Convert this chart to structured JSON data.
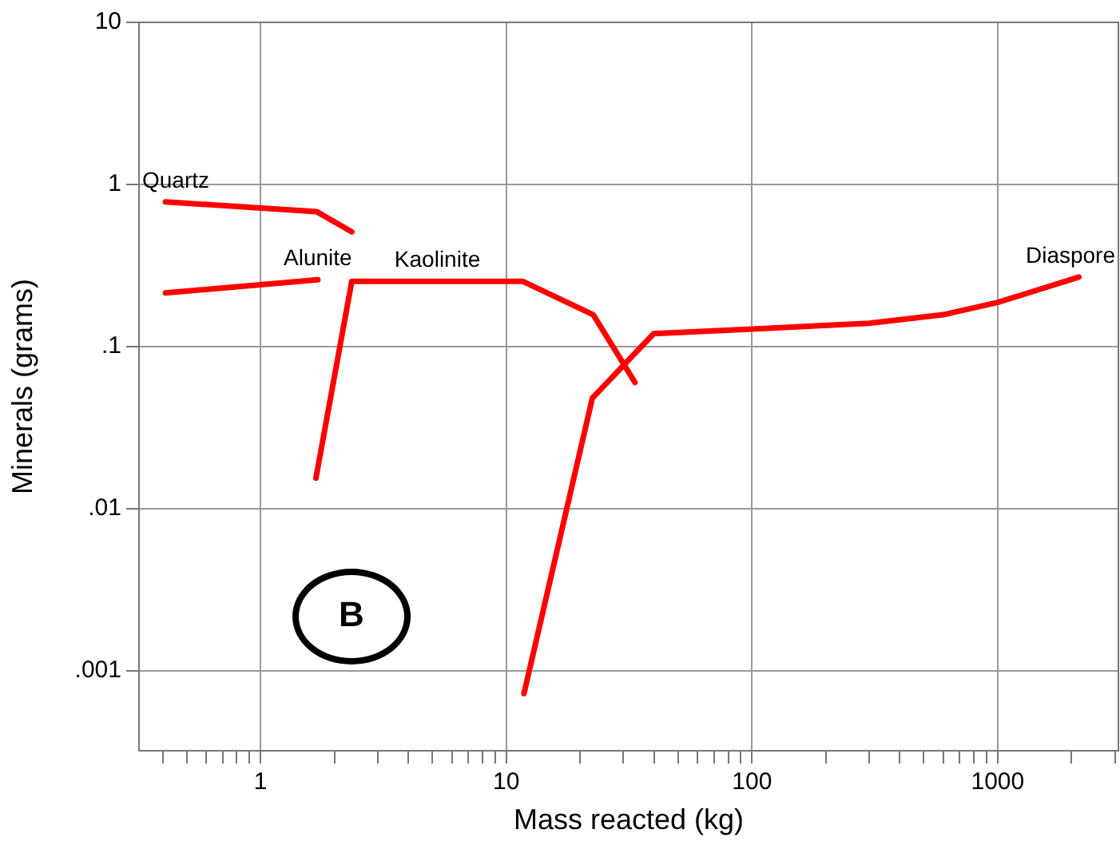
{
  "chart_data": {
    "type": "line",
    "xlabel": "Mass reacted (kg)",
    "ylabel": "Minerals (grams)",
    "log": "xy",
    "grid": true,
    "legend": false,
    "marker": "none",
    "line_style": "solid",
    "xlim": [
      0.32,
      3100
    ],
    "ylim": [
      0.00032,
      10
    ],
    "xticks": [
      {
        "value": 0.4,
        "label": null
      },
      {
        "value": 0.5,
        "label": null
      },
      {
        "value": 0.6,
        "label": null
      },
      {
        "value": 0.7,
        "label": null
      },
      {
        "value": 0.8,
        "label": null
      },
      {
        "value": 0.9,
        "label": null
      },
      1,
      {
        "value": 2,
        "label": null
      },
      {
        "value": 3,
        "label": null
      },
      {
        "value": 4,
        "label": null
      },
      {
        "value": 5,
        "label": null
      },
      {
        "value": 6,
        "label": null
      },
      {
        "value": 7,
        "label": null
      },
      {
        "value": 8,
        "label": null
      },
      {
        "value": 9,
        "label": null
      },
      10,
      {
        "value": 20,
        "label": null
      },
      {
        "value": 30,
        "label": null
      },
      {
        "value": 40,
        "label": null
      },
      {
        "value": 50,
        "label": null
      },
      {
        "value": 60,
        "label": null
      },
      {
        "value": 70,
        "label": null
      },
      {
        "value": 80,
        "label": null
      },
      {
        "value": 90,
        "label": null
      },
      100,
      {
        "value": 200,
        "label": null
      },
      {
        "value": 300,
        "label": null
      },
      {
        "value": 400,
        "label": null
      },
      {
        "value": 500,
        "label": null
      },
      {
        "value": 600,
        "label": null
      },
      {
        "value": 700,
        "label": null
      },
      {
        "value": 800,
        "label": null
      },
      {
        "value": 900,
        "label": null
      },
      1000,
      {
        "value": 2000,
        "label": null
      },
      {
        "value": 3000,
        "label": null
      }
    ],
    "yticks": [
      {
        "value": 0.001,
        "label": ".001"
      },
      {
        "value": 0.01,
        "label": ".01"
      },
      {
        "value": 0.1,
        "label": ".1"
      },
      1,
      10
    ],
    "series": [
      {
        "name": "Quartz",
        "color": "#ff0000",
        "x": [
          0.41,
          1.69,
          2.35
        ],
        "values": [
          0.78,
          0.68,
          0.51
        ]
      },
      {
        "name": "Alunite",
        "color": "#ff0000",
        "x": [
          0.41,
          1.71
        ],
        "values": [
          0.214,
          0.258
        ]
      },
      {
        "name": "Kaolinite",
        "color": "#ff0000",
        "x": [
          1.68,
          2.35,
          11.7,
          22.6,
          33.4
        ],
        "values": [
          0.0154,
          0.252,
          0.252,
          0.157,
          0.06
        ]
      },
      {
        "name": "Diaspore",
        "color": "#ff0000",
        "x": [
          11.8,
          22.4,
          39.8,
          100,
          300,
          600,
          1000,
          2140
        ],
        "values": [
          0.00072,
          0.048,
          0.12,
          0.128,
          0.139,
          0.157,
          0.187,
          0.268
        ]
      }
    ],
    "annotations": [
      "B"
    ]
  }
}
